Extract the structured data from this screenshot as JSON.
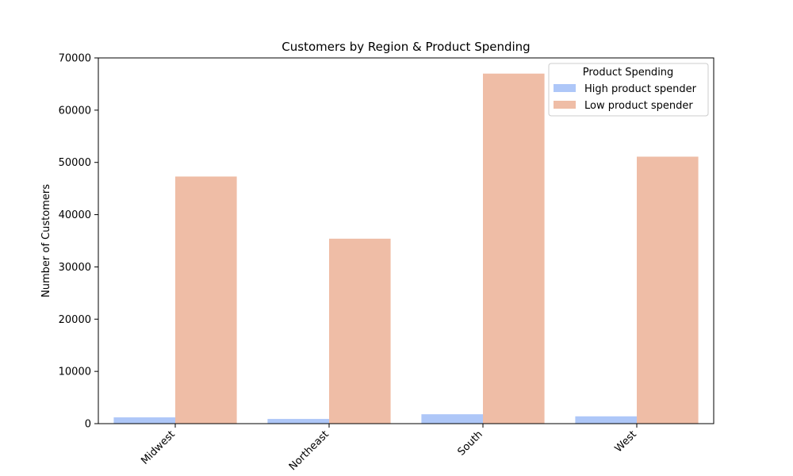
{
  "chart_data": {
    "type": "bar",
    "title": "Customers by Region & Product Spending",
    "xlabel": "",
    "ylabel": "Number of Customers",
    "categories": [
      "Midwest",
      "Northeast",
      "South",
      "West"
    ],
    "series": [
      {
        "name": "High product spender",
        "color": "#aec7f8",
        "values": [
          1200,
          900,
          1800,
          1400
        ]
      },
      {
        "name": "Low product spender",
        "color": "#efbda6",
        "values": [
          47300,
          35400,
          67000,
          51100
        ]
      }
    ],
    "ylim": [
      0,
      70000
    ],
    "yticks": [
      0,
      10000,
      20000,
      30000,
      40000,
      50000,
      60000,
      70000
    ],
    "grid": false,
    "legend": {
      "title": "Product Spending",
      "placement": "top-right"
    }
  }
}
